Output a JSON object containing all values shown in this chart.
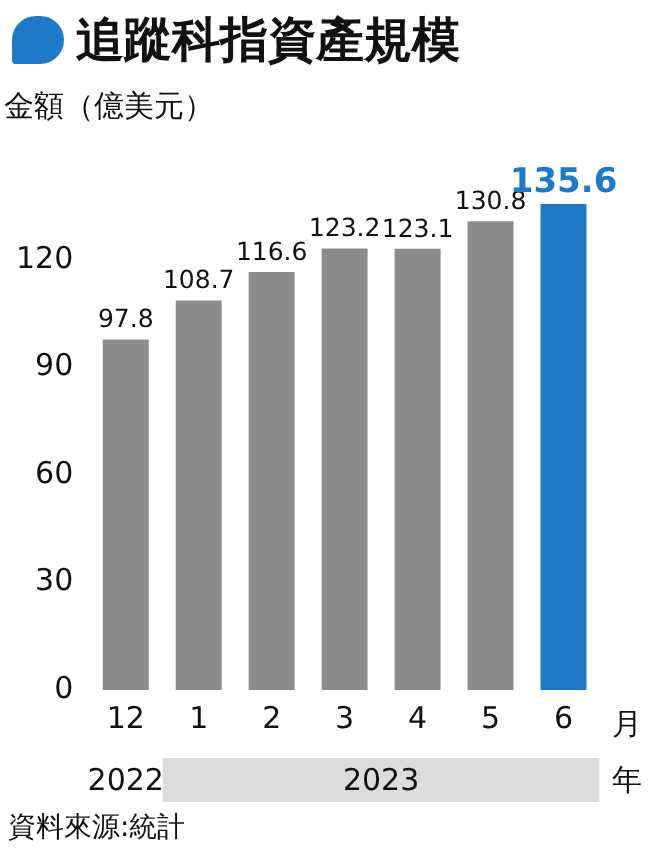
{
  "chart_data": {
    "type": "bar",
    "title": "追蹤科指資產規模",
    "ylabel": "金額（億美元）",
    "xlabel": "月",
    "categories": [
      "12",
      "1",
      "2",
      "3",
      "4",
      "5",
      "6"
    ],
    "values": [
      97.8,
      108.7,
      116.6,
      123.2,
      123.1,
      130.8,
      135.6
    ],
    "colors": [
      "#8c8c8c",
      "#8c8c8c",
      "#8c8c8c",
      "#8c8c8c",
      "#8c8c8c",
      "#8c8c8c",
      "#1f78c8"
    ],
    "ylim": [
      0,
      135.6
    ],
    "yticks": [
      0,
      30,
      60,
      90,
      120
    ],
    "grid": false,
    "legend": false,
    "data_labels": true,
    "annotations": [
      "2022",
      "2023",
      "年",
      "資料來源:統計"
    ]
  }
}
